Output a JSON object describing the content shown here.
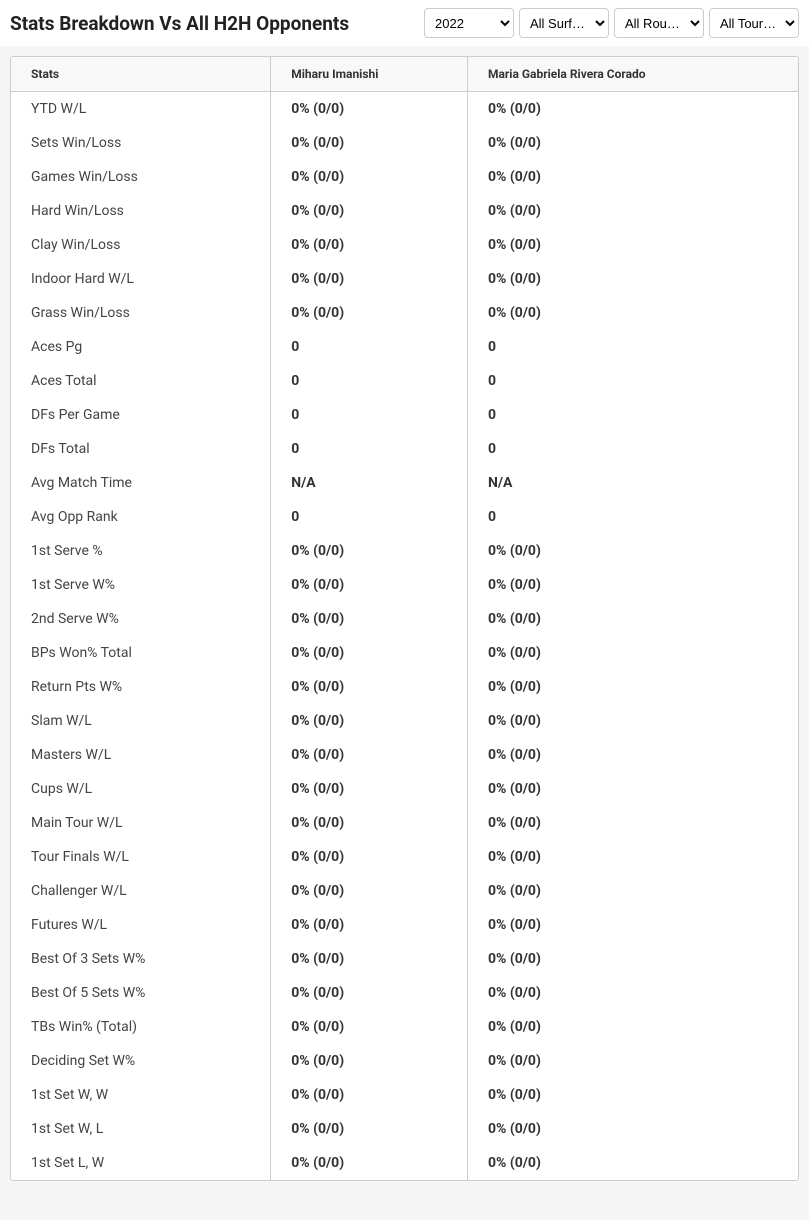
{
  "header": {
    "title": "Stats Breakdown Vs All H2H Opponents",
    "filters": {
      "year": {
        "selected": "2022",
        "options": [
          "2022"
        ]
      },
      "surface": {
        "selected": "All Surf…",
        "options": [
          "All Surf…"
        ]
      },
      "round": {
        "selected": "All Rou…",
        "options": [
          "All Rou…"
        ]
      },
      "tour": {
        "selected": "All Tour…",
        "options": [
          "All Tour…"
        ]
      }
    }
  },
  "table": {
    "columns": [
      "Stats",
      "Miharu Imanishi",
      "Maria Gabriela Rivera Corado"
    ],
    "rows": [
      {
        "stat": "YTD W/L",
        "p1": "0% (0/0)",
        "p2": "0% (0/0)"
      },
      {
        "stat": "Sets Win/Loss",
        "p1": "0% (0/0)",
        "p2": "0% (0/0)"
      },
      {
        "stat": "Games Win/Loss",
        "p1": "0% (0/0)",
        "p2": "0% (0/0)"
      },
      {
        "stat": "Hard Win/Loss",
        "p1": "0% (0/0)",
        "p2": "0% (0/0)"
      },
      {
        "stat": "Clay Win/Loss",
        "p1": "0% (0/0)",
        "p2": "0% (0/0)"
      },
      {
        "stat": "Indoor Hard W/L",
        "p1": "0% (0/0)",
        "p2": "0% (0/0)"
      },
      {
        "stat": "Grass Win/Loss",
        "p1": "0% (0/0)",
        "p2": "0% (0/0)"
      },
      {
        "stat": "Aces Pg",
        "p1": "0",
        "p2": "0"
      },
      {
        "stat": "Aces Total",
        "p1": "0",
        "p2": "0"
      },
      {
        "stat": "DFs Per Game",
        "p1": "0",
        "p2": "0"
      },
      {
        "stat": "DFs Total",
        "p1": "0",
        "p2": "0"
      },
      {
        "stat": "Avg Match Time",
        "p1": "N/A",
        "p2": "N/A"
      },
      {
        "stat": "Avg Opp Rank",
        "p1": "0",
        "p2": "0"
      },
      {
        "stat": "1st Serve %",
        "p1": "0% (0/0)",
        "p2": "0% (0/0)"
      },
      {
        "stat": "1st Serve W%",
        "p1": "0% (0/0)",
        "p2": "0% (0/0)"
      },
      {
        "stat": "2nd Serve W%",
        "p1": "0% (0/0)",
        "p2": "0% (0/0)"
      },
      {
        "stat": "BPs Won% Total",
        "p1": "0% (0/0)",
        "p2": "0% (0/0)"
      },
      {
        "stat": "Return Pts W%",
        "p1": "0% (0/0)",
        "p2": "0% (0/0)"
      },
      {
        "stat": "Slam W/L",
        "p1": "0% (0/0)",
        "p2": "0% (0/0)"
      },
      {
        "stat": "Masters W/L",
        "p1": "0% (0/0)",
        "p2": "0% (0/0)"
      },
      {
        "stat": "Cups W/L",
        "p1": "0% (0/0)",
        "p2": "0% (0/0)"
      },
      {
        "stat": "Main Tour W/L",
        "p1": "0% (0/0)",
        "p2": "0% (0/0)"
      },
      {
        "stat": "Tour Finals W/L",
        "p1": "0% (0/0)",
        "p2": "0% (0/0)"
      },
      {
        "stat": "Challenger W/L",
        "p1": "0% (0/0)",
        "p2": "0% (0/0)"
      },
      {
        "stat": "Futures W/L",
        "p1": "0% (0/0)",
        "p2": "0% (0/0)"
      },
      {
        "stat": "Best Of 3 Sets W%",
        "p1": "0% (0/0)",
        "p2": "0% (0/0)"
      },
      {
        "stat": "Best Of 5 Sets W%",
        "p1": "0% (0/0)",
        "p2": "0% (0/0)"
      },
      {
        "stat": "TBs Win% (Total)",
        "p1": "0% (0/0)",
        "p2": "0% (0/0)"
      },
      {
        "stat": "Deciding Set W%",
        "p1": "0% (0/0)",
        "p2": "0% (0/0)"
      },
      {
        "stat": "1st Set W, W",
        "p1": "0% (0/0)",
        "p2": "0% (0/0)"
      },
      {
        "stat": "1st Set W, L",
        "p1": "0% (0/0)",
        "p2": "0% (0/0)"
      },
      {
        "stat": "1st Set L, W",
        "p1": "0% (0/0)",
        "p2": "0% (0/0)"
      }
    ]
  },
  "colors": {
    "background": "#f5f5f5",
    "border": "#cccccc",
    "header_bg": "#f8f8f8",
    "text_primary": "#333333",
    "text_title": "#222222"
  }
}
